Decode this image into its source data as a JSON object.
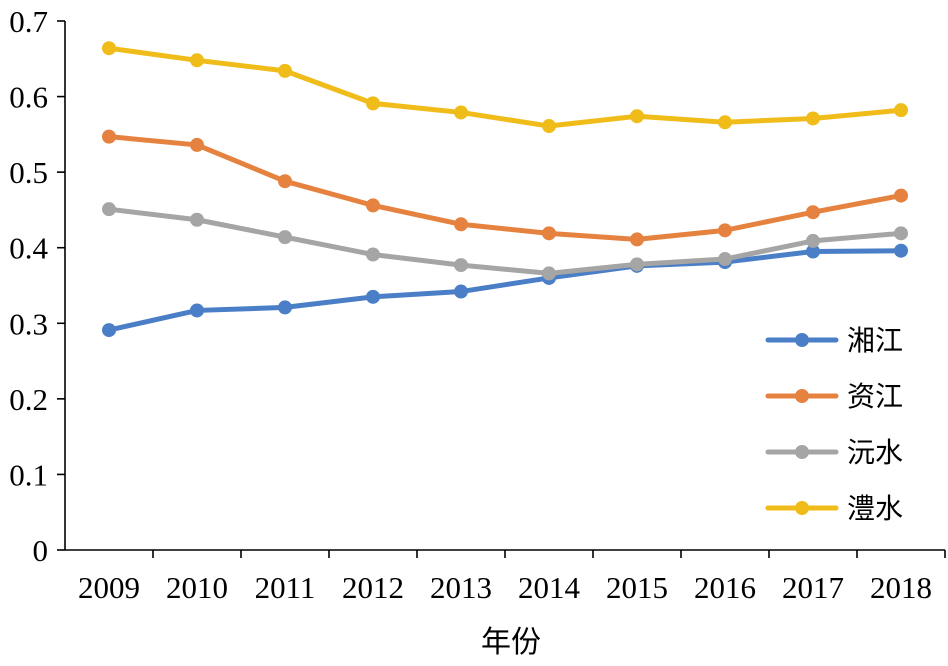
{
  "chart_data": {
    "type": "line",
    "title": "",
    "xlabel": "年份",
    "ylabel": "",
    "categories": [
      "2009",
      "2010",
      "2011",
      "2012",
      "2013",
      "2014",
      "2015",
      "2016",
      "2017",
      "2018"
    ],
    "ylim": [
      0,
      0.7
    ],
    "yticks": [
      "0",
      "0.1",
      "0.2",
      "0.3",
      "0.4",
      "0.5",
      "0.6",
      "0.7"
    ],
    "grid": false,
    "legend_position": "bottom-right",
    "series": [
      {
        "name": "湘江",
        "color": "#4A7EC7",
        "values": [
          0.291,
          0.317,
          0.321,
          0.335,
          0.342,
          0.36,
          0.376,
          0.381,
          0.395,
          0.396
        ]
      },
      {
        "name": "资江",
        "color": "#E6823F",
        "values": [
          0.547,
          0.536,
          0.488,
          0.456,
          0.431,
          0.419,
          0.411,
          0.423,
          0.447,
          0.469
        ]
      },
      {
        "name": "沅水",
        "color": "#A5A5A5",
        "values": [
          0.451,
          0.437,
          0.414,
          0.391,
          0.377,
          0.366,
          0.378,
          0.385,
          0.409,
          0.419
        ]
      },
      {
        "name": "澧水",
        "color": "#F0BC1A",
        "values": [
          0.664,
          0.648,
          0.634,
          0.591,
          0.579,
          0.561,
          0.574,
          0.566,
          0.571,
          0.582
        ]
      }
    ]
  }
}
